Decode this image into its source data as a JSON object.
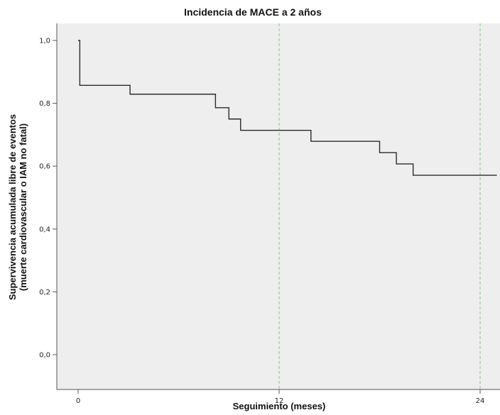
{
  "chart_data": {
    "type": "line",
    "title": "Incidencia de MACE a 2 años",
    "xlabel": "Seguimiento (meses)",
    "ylabel_lines": [
      "Supervivencia acumulada libre de eventos",
      "(muerte cardiovascular o IAM no fatal)"
    ],
    "xlim": [
      0,
      25
    ],
    "ylim": [
      0,
      1.0
    ],
    "x_ticks": [
      {
        "value": 0,
        "label": "0"
      },
      {
        "value": 12,
        "label": "12"
      },
      {
        "value": 24,
        "label": "24"
      }
    ],
    "y_ticks": [
      {
        "value": 0.0,
        "label": "0,0"
      },
      {
        "value": 0.2,
        "label": "0,2"
      },
      {
        "value": 0.4,
        "label": "0,4"
      },
      {
        "value": 0.6,
        "label": "0,6"
      },
      {
        "value": 0.8,
        "label": "0,8"
      },
      {
        "value": 1.0,
        "label": "1,0"
      }
    ],
    "reference_lines_x": [
      12,
      24
    ],
    "series": [
      {
        "step": true,
        "points": [
          [
            0.0,
            1.0
          ],
          [
            0.1,
            0.857
          ],
          [
            3.1,
            0.829
          ],
          [
            8.2,
            0.786
          ],
          [
            9.0,
            0.75
          ],
          [
            9.7,
            0.714
          ],
          [
            13.9,
            0.679
          ],
          [
            18.0,
            0.643
          ],
          [
            19.0,
            0.607
          ],
          [
            20.0,
            0.571
          ],
          [
            25.0,
            0.571
          ]
        ]
      }
    ],
    "colors": {
      "plot_background": "#eeeeee",
      "line": "#2b2b2b",
      "reference_line": "#7dc87d"
    },
    "grid": false
  }
}
